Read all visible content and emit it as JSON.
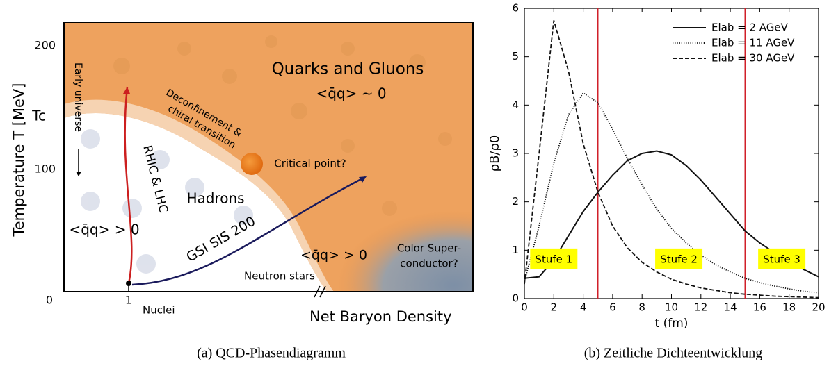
{
  "diagram": {
    "y_label": "Temperature T [MeV]",
    "y_ticks": [
      "200",
      "Tc",
      "100",
      "0"
    ],
    "x_ticks": [
      "1"
    ],
    "x_note": "Nuclei",
    "x_label": "Net Baryon Density",
    "regions": {
      "early": "Early universe",
      "rhic": "RHIC & LHC",
      "hadrons": "Hadrons",
      "cond_hadrons": "<q̄q> > 0",
      "gsi": "GSI SIS 200",
      "cond_neutron": "<q̄q> > 0",
      "neutron": "Neutron stars",
      "color_sc": [
        "Color Super-",
        "conductor?"
      ],
      "critical": "Critical point?",
      "deconf": [
        "Deconfinement &",
        "chiral transition"
      ],
      "qgp": "Quarks and Gluons",
      "cond_qgp": "<q̄q> ~ 0"
    },
    "caption": "(a) QCD-Phasendiagramm"
  },
  "chart_data": {
    "type": "line",
    "x_label": "t (fm)",
    "y_label": "ρB/ρ0",
    "x": [
      0,
      1,
      2,
      3,
      4,
      5,
      6,
      7,
      8,
      9,
      10,
      11,
      12,
      13,
      14,
      15,
      16,
      17,
      18,
      19,
      20
    ],
    "series": [
      {
        "name": "Elab =  2 AGeV",
        "color": "#111111",
        "dash": "solid",
        "values": [
          0.42,
          0.45,
          0.8,
          1.3,
          1.8,
          2.2,
          2.55,
          2.85,
          3.0,
          3.05,
          2.97,
          2.75,
          2.45,
          2.1,
          1.75,
          1.4,
          1.15,
          0.95,
          0.78,
          0.6,
          0.45
        ]
      },
      {
        "name": "Elab = 11 AGeV",
        "color": "#111111",
        "dash": "dotted",
        "values": [
          0.35,
          1.5,
          2.8,
          3.8,
          4.25,
          4.05,
          3.5,
          2.9,
          2.35,
          1.85,
          1.45,
          1.15,
          0.9,
          0.7,
          0.55,
          0.42,
          0.33,
          0.26,
          0.2,
          0.15,
          0.12
        ]
      },
      {
        "name": "Elab = 30 AGeV",
        "color": "#111111",
        "dash": "dashed",
        "values": [
          0.3,
          3.0,
          5.75,
          4.7,
          3.2,
          2.2,
          1.5,
          1.05,
          0.75,
          0.55,
          0.4,
          0.3,
          0.22,
          0.17,
          0.12,
          0.09,
          0.07,
          0.05,
          0.04,
          0.03,
          0.02
        ]
      }
    ],
    "xlim": [
      0,
      20
    ],
    "ylim": [
      0,
      6
    ],
    "xticks": [
      0,
      2,
      4,
      6,
      8,
      10,
      12,
      14,
      16,
      18,
      20
    ],
    "yticks": [
      0,
      1,
      2,
      3,
      4,
      5,
      6
    ],
    "vlines": {
      "values": [
        5,
        15
      ],
      "color": "#d0202a"
    },
    "annotations": [
      {
        "text": "Stufe 1",
        "x": 2,
        "y": 0.82,
        "color": "#ffff00"
      },
      {
        "text": "Stufe 2",
        "x": 10.5,
        "y": 0.82,
        "color": "#ffff00"
      },
      {
        "text": "Stufe 3",
        "x": 17.5,
        "y": 0.82,
        "color": "#ffff00"
      }
    ],
    "legend": "upper right",
    "caption": "(b) Zeitliche Dichteentwicklung"
  }
}
